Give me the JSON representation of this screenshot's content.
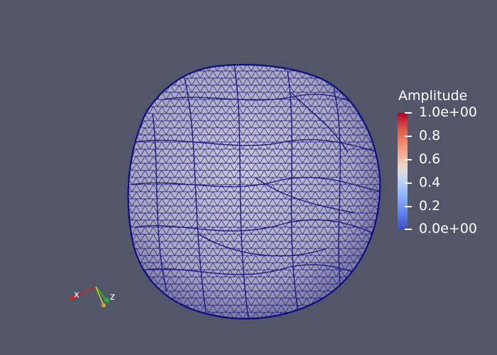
{
  "colorbar": {
    "title": "Amplitude",
    "labels": [
      "1.0e+00",
      "0.8",
      "0.6",
      "0.4",
      "0.2",
      "0.0e+00"
    ]
  },
  "axes": {
    "x_label": "x",
    "z_label": "z"
  },
  "colors": {
    "background": "#525669",
    "mesh_fill": "#b9b9c8",
    "mesh_edges": "#1a1a8c"
  }
}
